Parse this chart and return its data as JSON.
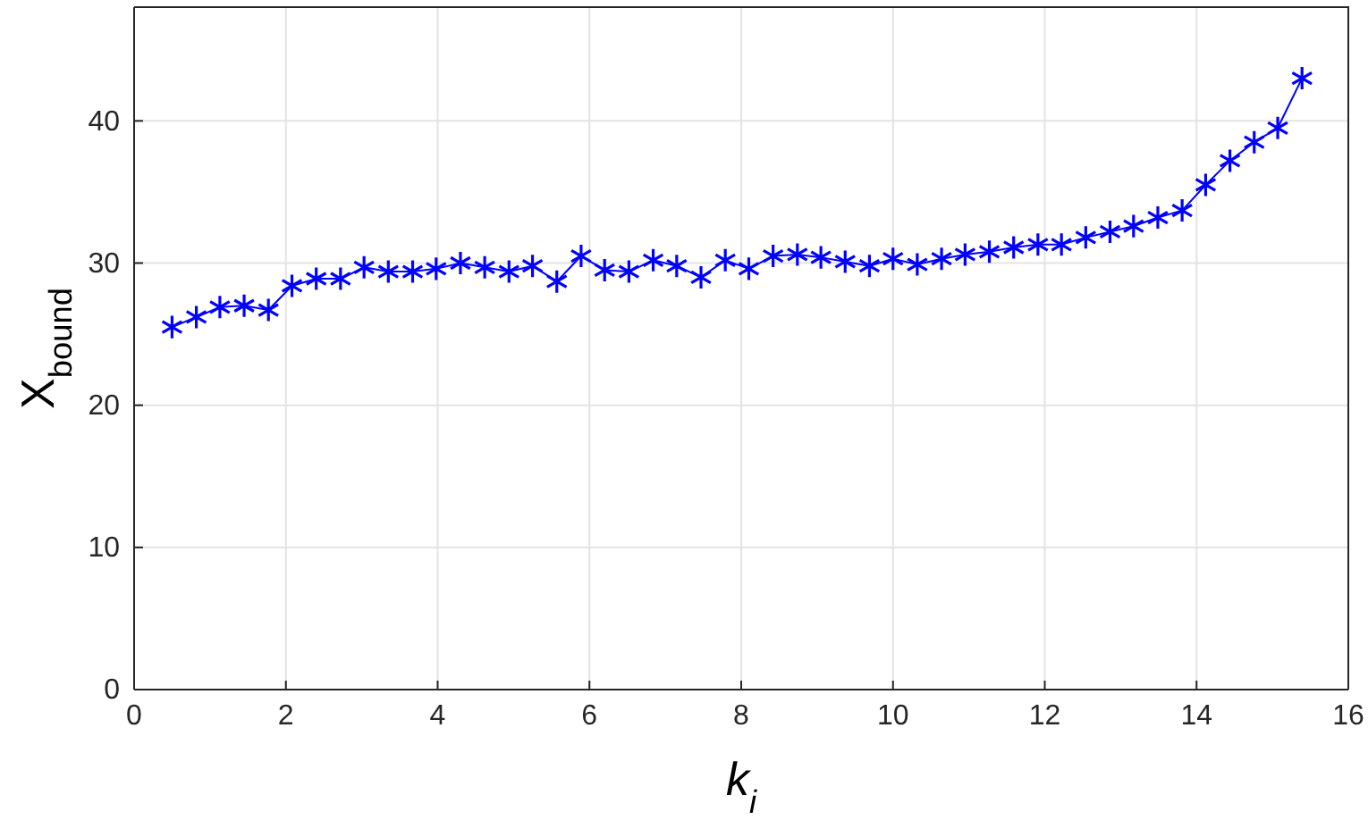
{
  "chart_data": {
    "type": "line",
    "xlabel": "k$_{i}$",
    "ylabel": "X$_{bound}$",
    "x": [
      0.5,
      0.82,
      1.13,
      1.45,
      1.77,
      2.08,
      2.4,
      2.72,
      3.03,
      3.35,
      3.67,
      3.98,
      4.3,
      4.62,
      4.94,
      5.25,
      5.57,
      5.89,
      6.2,
      6.52,
      6.84,
      7.15,
      7.47,
      7.79,
      8.1,
      8.42,
      8.74,
      9.05,
      9.37,
      9.69,
      10.0,
      10.32,
      10.64,
      10.95,
      11.27,
      11.59,
      11.91,
      12.22,
      12.54,
      12.86,
      13.17,
      13.49,
      13.81,
      14.12,
      14.44,
      14.76,
      15.07,
      15.39
    ],
    "series": [
      {
        "color": "#0000ff",
        "values": [
          25.5,
          26.2,
          26.9,
          27.0,
          26.7,
          28.4,
          28.9,
          28.9,
          29.7,
          29.4,
          29.4,
          29.6,
          30.0,
          29.7,
          29.4,
          29.8,
          28.7,
          30.5,
          29.5,
          29.4,
          30.2,
          29.8,
          29.0,
          30.2,
          29.6,
          30.5,
          30.6,
          30.4,
          30.1,
          29.8,
          30.3,
          29.9,
          30.3,
          30.6,
          30.8,
          31.1,
          31.3,
          31.3,
          31.8,
          32.2,
          32.6,
          33.2,
          33.7,
          35.5,
          37.2,
          38.5,
          39.5,
          43.0
        ]
      }
    ],
    "xlim": [
      0,
      16
    ],
    "xticks": [
      0,
      2,
      4,
      6,
      8,
      10,
      12,
      14,
      16
    ],
    "ylim": [
      0,
      48
    ],
    "yticks": [
      0,
      10,
      20,
      30,
      40
    ],
    "grid": true,
    "marker": "cross",
    "line_style": "solid"
  }
}
